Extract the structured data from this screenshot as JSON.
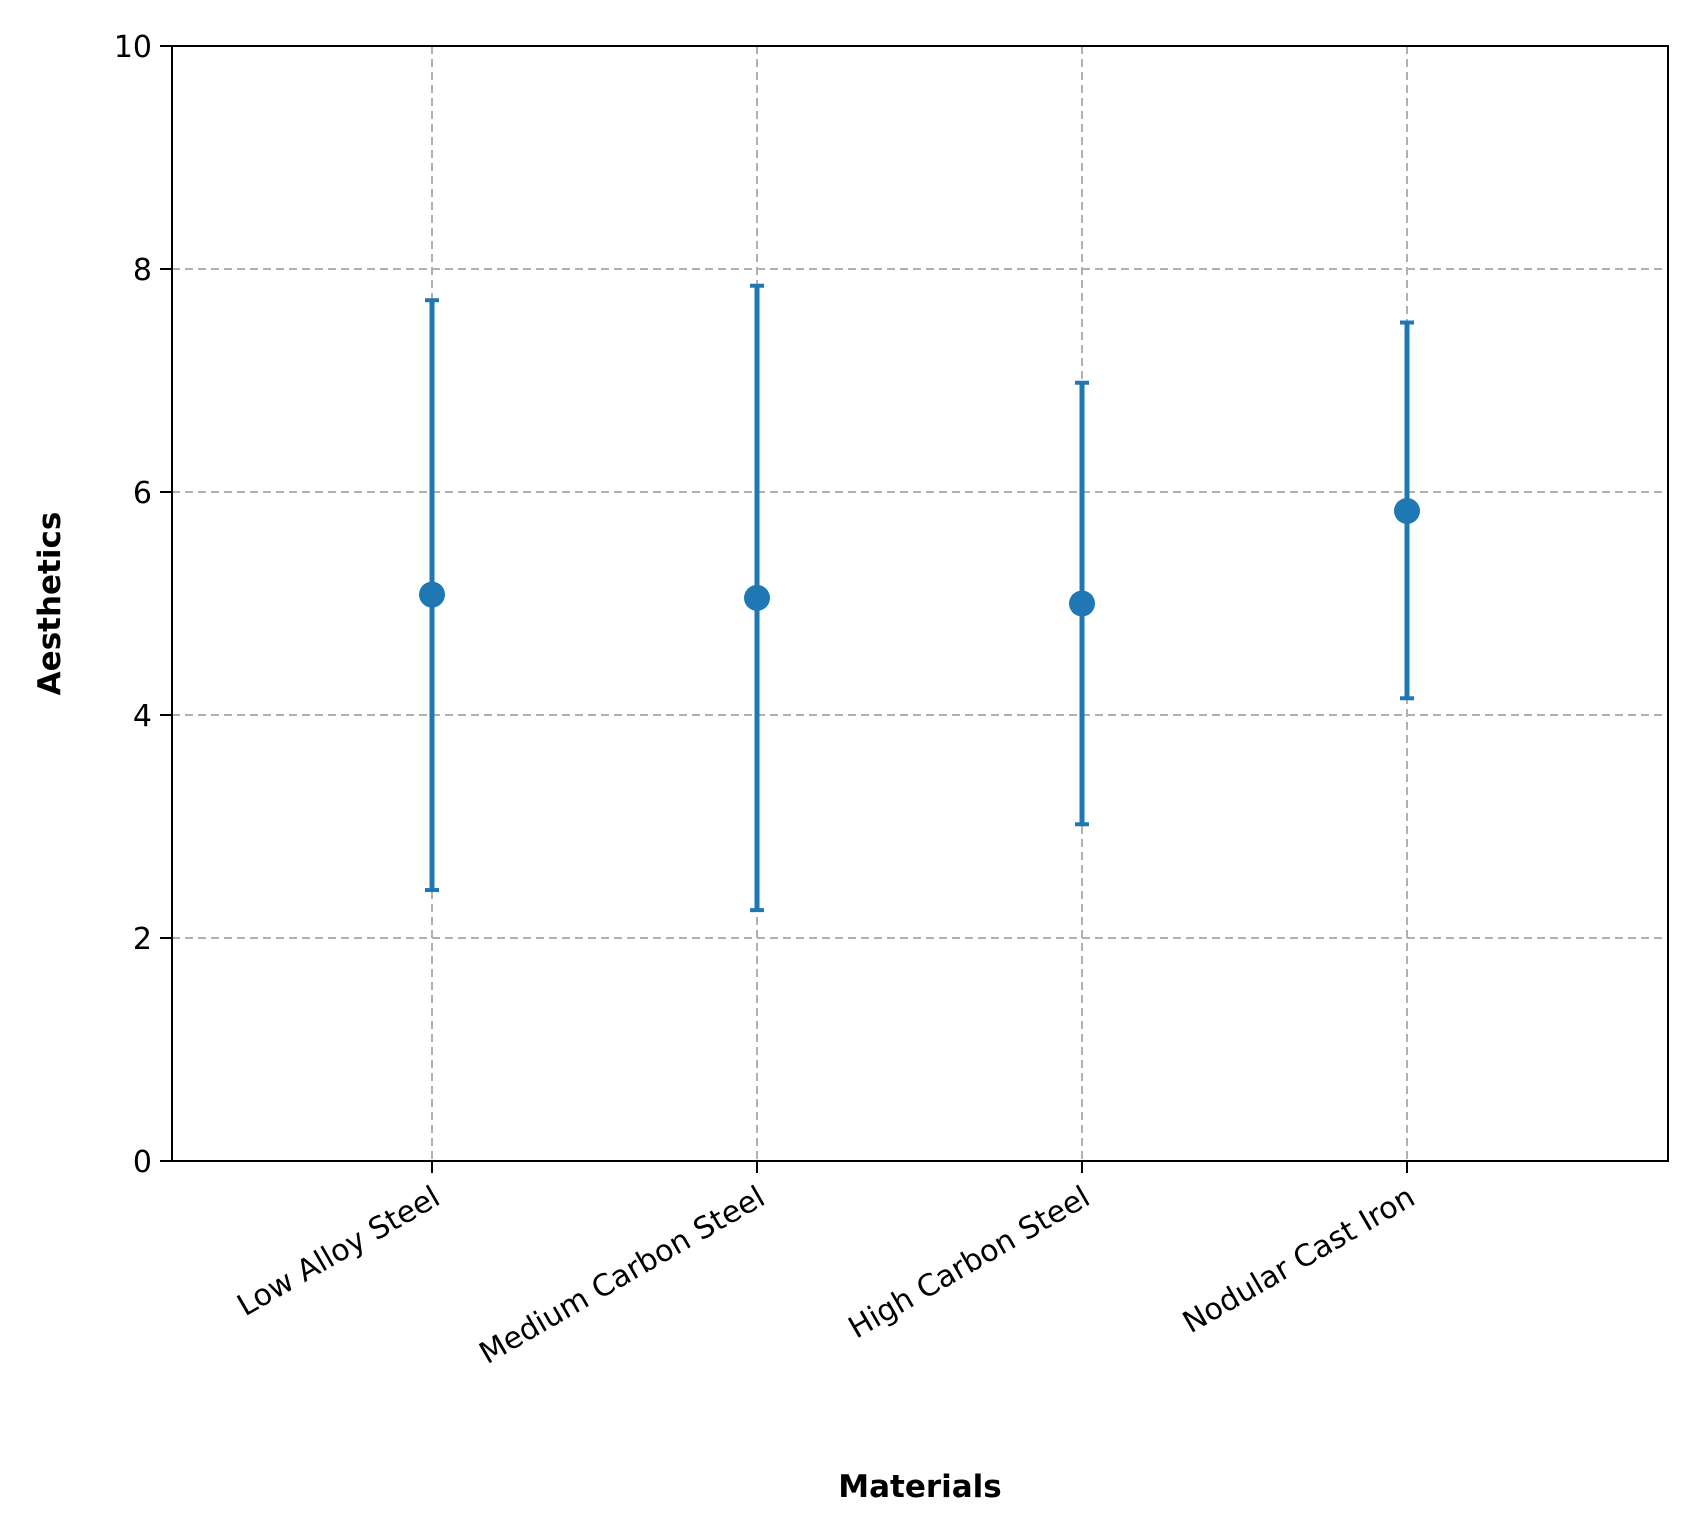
{
  "chart_data": {
    "type": "errorbar",
    "title": "",
    "xlabel": "Materials",
    "ylabel": "Aesthetics",
    "ylim": [
      0,
      10
    ],
    "yticks": [
      0,
      2,
      4,
      6,
      8,
      10
    ],
    "grid": true,
    "categories": [
      "Low Alloy Steel",
      "Medium Carbon Steel",
      "High Carbon Steel",
      "Nodular Cast Iron"
    ],
    "series": [
      {
        "values": [
          5.08,
          5.05,
          5.0,
          5.83
        ],
        "lower": [
          2.43,
          2.25,
          3.02,
          4.15
        ],
        "upper": [
          7.72,
          7.85,
          6.98,
          7.52
        ],
        "color": "#1f77b4"
      }
    ]
  }
}
